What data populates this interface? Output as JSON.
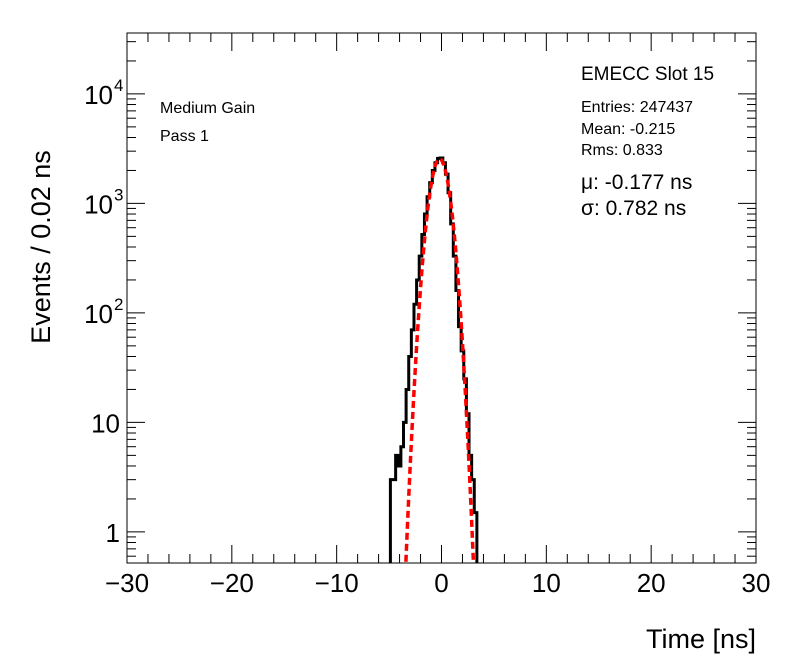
{
  "chart_data": {
    "type": "line",
    "title": "EMECC Slot 15",
    "xlabel": "Time [ns]",
    "ylabel": "Events / 0.02 ns",
    "xlim": [
      -30,
      30
    ],
    "ylim": [
      0.52,
      36000
    ],
    "yscale": "log",
    "x_ticks": [
      "−30",
      "−20",
      "−10",
      "0",
      "10",
      "20",
      "30"
    ],
    "x_tick_values": [
      -30,
      -20,
      -10,
      0,
      10,
      20,
      30
    ],
    "y_ticks": [
      {
        "value": 1,
        "base": "1",
        "exp": ""
      },
      {
        "value": 10,
        "base": "10",
        "exp": ""
      },
      {
        "value": 100,
        "base": "10",
        "exp": "2"
      },
      {
        "value": 1000,
        "base": "10",
        "exp": "3"
      },
      {
        "value": 10000,
        "base": "10",
        "exp": "4"
      }
    ],
    "annotations": [
      "Medium Gain",
      "Pass 1"
    ],
    "stats": {
      "entries": "Entries: 247437",
      "mean": "Mean: -0.215",
      "rms": "Rms: 0.833"
    },
    "fit": {
      "mu_label": "μ: -0.177 ns",
      "sigma_label": "σ: 0.782 ns",
      "mean": -0.177,
      "sigma": 0.782,
      "amplitude": 2550,
      "color": "#ff0000"
    },
    "histogram": {
      "color": "#000000",
      "x": [
        -4.75,
        -4.5,
        -4.25,
        -4,
        -3.75,
        -3.5,
        -3.25,
        -3,
        -2.75,
        -2.5,
        -2.25,
        -2,
        -1.75,
        -1.5,
        -1.25,
        -1,
        -0.75,
        -0.5,
        -0.25,
        0,
        0.25,
        0.5,
        0.75,
        1,
        1.25,
        1.5,
        1.75,
        2,
        2.25,
        2.5,
        2.75,
        3,
        3.25
      ],
      "y": [
        3,
        3,
        5,
        4,
        6,
        10,
        20,
        40,
        70,
        120,
        200,
        330,
        520,
        800,
        1150,
        1550,
        2000,
        2350,
        2580,
        2600,
        2350,
        1850,
        1250,
        650,
        330,
        160,
        75,
        45,
        25,
        12,
        5,
        3,
        1.5
      ]
    }
  }
}
